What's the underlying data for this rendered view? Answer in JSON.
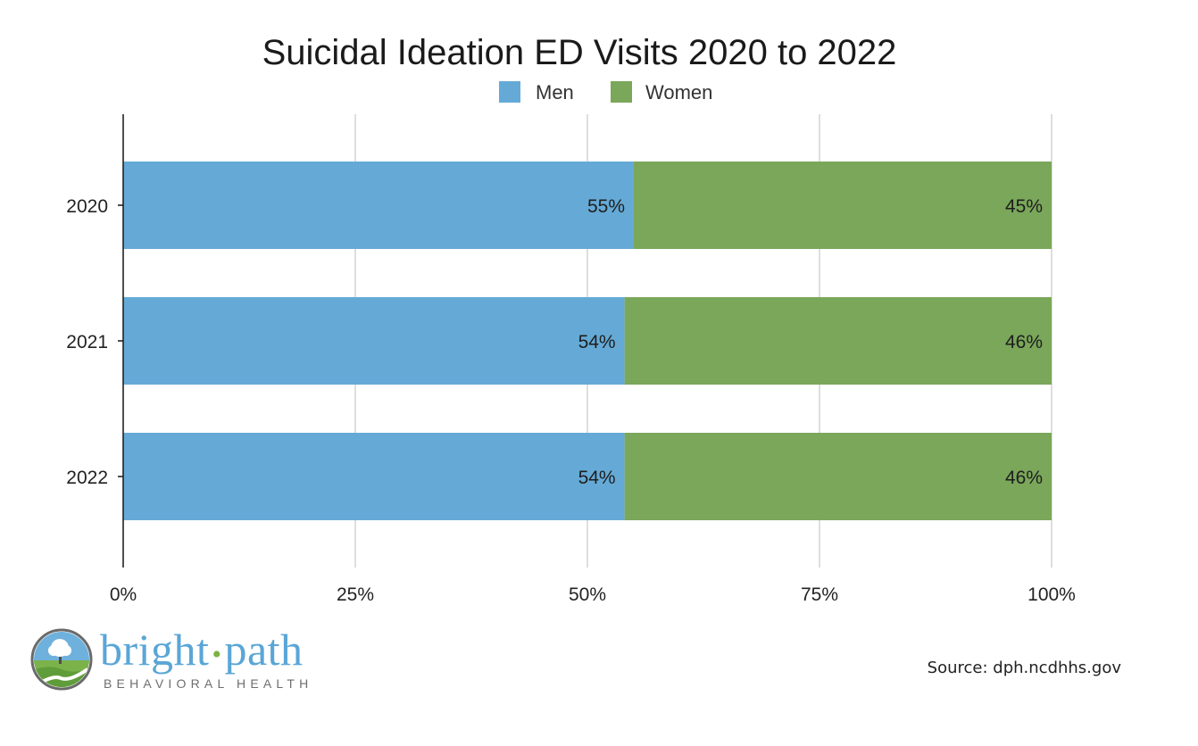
{
  "chart_data": {
    "type": "bar",
    "orientation": "horizontal",
    "stacked": true,
    "title": "Suicidal Ideation ED Visits 2020 to 2022",
    "categories": [
      "2020",
      "2021",
      "2022"
    ],
    "series": [
      {
        "name": "Men",
        "color": "#65aad6",
        "values": [
          55,
          54,
          54
        ],
        "labels": [
          "55%",
          "54%",
          "54%"
        ]
      },
      {
        "name": "Women",
        "color": "#7aa75a",
        "values": [
          45,
          46,
          46
        ],
        "labels": [
          "45%",
          "46%",
          "46%"
        ]
      }
    ],
    "xlim": [
      0,
      100
    ],
    "xticks": [
      0,
      25,
      50,
      75,
      100
    ],
    "xtick_labels": [
      "0%",
      "25%",
      "50%",
      "75%",
      "100%"
    ],
    "xlabel": "",
    "ylabel": "",
    "grid": true,
    "legend_position": "top-center"
  },
  "branding": {
    "logo_name": "bright",
    "logo_name_2": "path",
    "logo_separator": "•",
    "logo_tagline": "BEHAVIORAL HEALTH",
    "logo_icon": "landscape-tree-icon",
    "source": "Source: dph.ncdhhs.gov"
  }
}
